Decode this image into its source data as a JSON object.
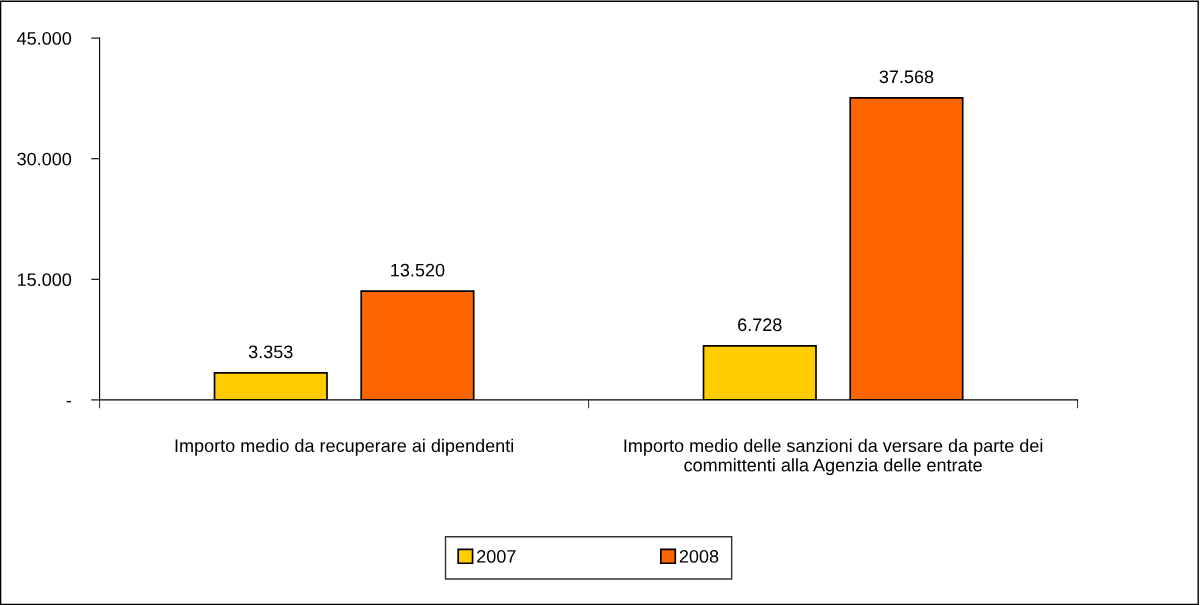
{
  "chart_data": {
    "type": "bar",
    "categories": [
      "Importo medio da recuperare ai dipendenti",
      "Importo medio delle sanzioni da versare da parte dei\ncommittenti alla Agenzia delle entrate"
    ],
    "series": [
      {
        "name": "2007",
        "color": "#ffcc00",
        "values": [
          3353,
          6728
        ],
        "value_labels": [
          "3.353",
          "6.728"
        ]
      },
      {
        "name": "2008",
        "color": "#ff6600",
        "values": [
          13520,
          37568
        ],
        "value_labels": [
          "13.520",
          "37.568"
        ]
      }
    ],
    "ylim": [
      0,
      45000
    ],
    "yticks": [
      {
        "value": 0,
        "label": "-"
      },
      {
        "value": 15000,
        "label": "15.000"
      },
      {
        "value": 30000,
        "label": "30.000"
      },
      {
        "value": 45000,
        "label": "45.000"
      }
    ],
    "legend": "bottom",
    "grid": false
  }
}
